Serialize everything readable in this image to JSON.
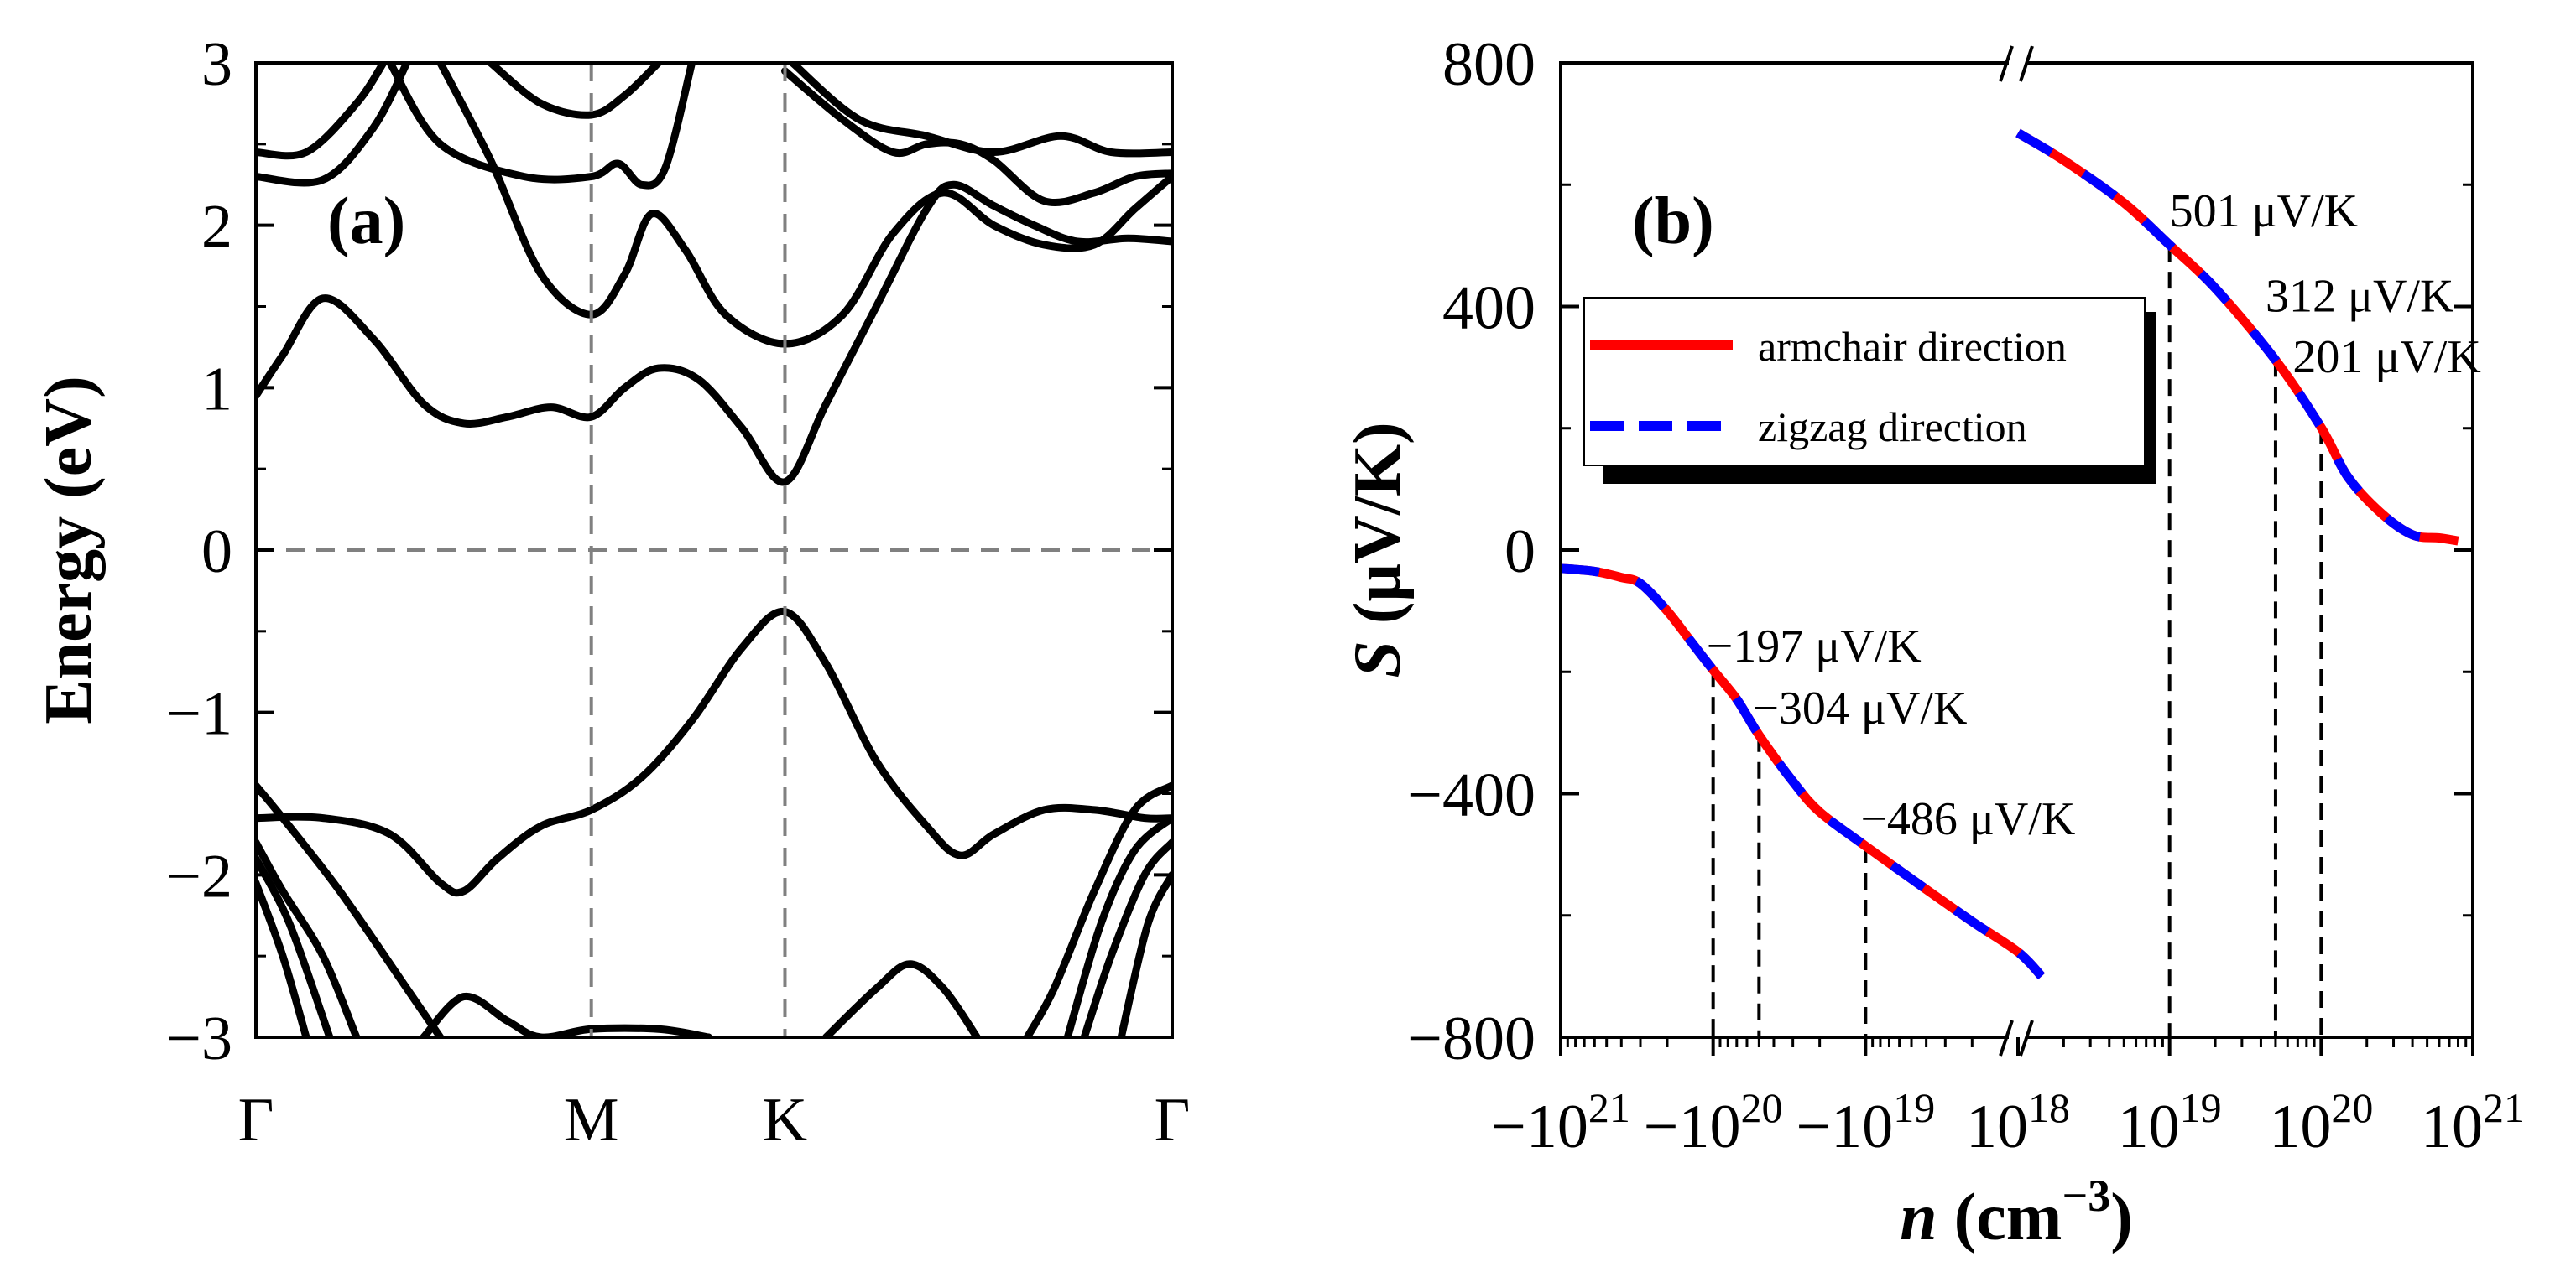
{
  "chart_data": [
    {
      "id": "a",
      "type": "line",
      "panel_label": "(a)",
      "ylabel": "Energy (eV)",
      "xlabel": "",
      "ylim": [
        -3,
        3
      ],
      "yticks": [
        "3",
        "2",
        "1",
        "0",
        "−1",
        "−2",
        "−3"
      ],
      "ytick_values": [
        3,
        2,
        1,
        0,
        -1,
        -2,
        -3
      ],
      "k_points": [
        "Γ",
        "M",
        "K",
        "Γ"
      ],
      "k_positions": [
        0,
        1,
        1.5774,
        2.7321
      ],
      "fermi_level": 0,
      "series": [
        {
          "name": "conduction band 1",
          "points": [
            [
              0,
              0.95
            ],
            [
              0.08,
              1.2
            ],
            [
              0.2,
              1.55
            ],
            [
              0.35,
              1.3
            ],
            [
              0.5,
              0.9
            ],
            [
              0.62,
              0.78
            ],
            [
              0.75,
              0.82
            ],
            [
              0.88,
              0.88
            ],
            [
              1,
              0.82
            ],
            [
              1.1,
              1.0
            ],
            [
              1.2,
              1.12
            ],
            [
              1.32,
              1.05
            ],
            [
              1.45,
              0.75
            ],
            [
              1.5774,
              0.42
            ],
            [
              1.7,
              0.9
            ],
            [
              1.85,
              1.5
            ],
            [
              2.0,
              2.1
            ],
            [
              2.08,
              2.25
            ],
            [
              2.2,
              2.12
            ],
            [
              2.32,
              2.0
            ],
            [
              2.45,
              1.9
            ],
            [
              2.6,
              1.92
            ],
            [
              2.7321,
              1.9
            ]
          ]
        },
        {
          "name": "conduction band 2",
          "points": [
            [
              0.55,
              3
            ],
            [
              0.7,
              2.4
            ],
            [
              0.85,
              1.7
            ],
            [
              1,
              1.45
            ],
            [
              1.1,
              1.7
            ],
            [
              1.18,
              2.07
            ],
            [
              1.28,
              1.85
            ],
            [
              1.4,
              1.45
            ],
            [
              1.5774,
              1.27
            ],
            [
              1.75,
              1.45
            ],
            [
              1.9,
              1.95
            ],
            [
              2.05,
              2.2
            ],
            [
              2.2,
              2.0
            ],
            [
              2.35,
              1.88
            ],
            [
              2.5,
              1.88
            ],
            [
              2.62,
              2.1
            ],
            [
              2.7321,
              2.3
            ]
          ]
        },
        {
          "name": "conduction band 3",
          "points": [
            [
              0,
              2.3
            ],
            [
              0.2,
              2.28
            ],
            [
              0.35,
              2.6
            ],
            [
              0.45,
              3
            ]
          ]
        },
        {
          "name": "conduction band 4",
          "points": [
            [
              0,
              2.45
            ],
            [
              0.15,
              2.45
            ],
            [
              0.3,
              2.75
            ],
            [
              0.38,
              3
            ]
          ]
        },
        {
          "name": "conduction band 5",
          "points": [
            [
              0.4,
              3
            ],
            [
              0.55,
              2.5
            ],
            [
              0.8,
              2.3
            ],
            [
              1,
              2.3
            ],
            [
              1.08,
              2.38
            ],
            [
              1.15,
              2.25
            ],
            [
              1.22,
              2.35
            ],
            [
              1.3,
              3
            ]
          ]
        },
        {
          "name": "conduction band 6",
          "points": [
            [
              0.7,
              3
            ],
            [
              0.85,
              2.75
            ],
            [
              1,
              2.68
            ],
            [
              1.1,
              2.8
            ],
            [
              1.2,
              3
            ]
          ]
        },
        {
          "name": "conduction band 7",
          "points": [
            [
              1.5774,
              2.95
            ],
            [
              1.75,
              2.65
            ],
            [
              1.9,
              2.45
            ],
            [
              2.0,
              2.5
            ],
            [
              2.1,
              2.5
            ],
            [
              2.2,
              2.4
            ],
            [
              2.35,
              2.15
            ],
            [
              2.5,
              2.2
            ],
            [
              2.62,
              2.3
            ],
            [
              2.7321,
              2.32
            ]
          ]
        },
        {
          "name": "conduction band 8",
          "points": [
            [
              1.6,
              3
            ],
            [
              1.8,
              2.65
            ],
            [
              2.0,
              2.55
            ],
            [
              2.2,
              2.45
            ],
            [
              2.4,
              2.55
            ],
            [
              2.55,
              2.45
            ],
            [
              2.7321,
              2.45
            ]
          ]
        },
        {
          "name": "valence band 1",
          "points": [
            [
              0,
              -1.65
            ],
            [
              0.2,
              -1.65
            ],
            [
              0.4,
              -1.75
            ],
            [
              0.55,
              -2.05
            ],
            [
              0.62,
              -2.1
            ],
            [
              0.72,
              -1.9
            ],
            [
              0.85,
              -1.7
            ],
            [
              1,
              -1.6
            ],
            [
              1.15,
              -1.4
            ],
            [
              1.3,
              -1.05
            ],
            [
              1.45,
              -0.6
            ],
            [
              1.5774,
              -0.38
            ],
            [
              1.7,
              -0.7
            ],
            [
              1.85,
              -1.3
            ],
            [
              2.0,
              -1.7
            ],
            [
              2.1,
              -1.88
            ],
            [
              2.2,
              -1.75
            ],
            [
              2.35,
              -1.6
            ],
            [
              2.5,
              -1.6
            ],
            [
              2.65,
              -1.65
            ],
            [
              2.7321,
              -1.65
            ]
          ]
        },
        {
          "name": "valence band 2",
          "points": [
            [
              0,
              -1.45
            ],
            [
              0.08,
              -1.65
            ],
            [
              0.25,
              -2.1
            ],
            [
              0.45,
              -2.7
            ],
            [
              0.55,
              -3
            ]
          ]
        },
        {
          "name": "valence band 3",
          "points": [
            [
              0,
              -1.8
            ],
            [
              0.08,
              -2.1
            ],
            [
              0.2,
              -2.5
            ],
            [
              0.3,
              -3
            ]
          ]
        },
        {
          "name": "valence band 4",
          "points": [
            [
              0,
              -1.9
            ],
            [
              0.1,
              -2.3
            ],
            [
              0.22,
              -3
            ]
          ]
        },
        {
          "name": "valence band 5",
          "points": [
            [
              0,
              -2.05
            ],
            [
              0.08,
              -2.5
            ],
            [
              0.15,
              -3
            ]
          ]
        },
        {
          "name": "valence band 6",
          "points": [
            [
              0.5,
              -3
            ],
            [
              0.62,
              -2.75
            ],
            [
              0.75,
              -2.9
            ],
            [
              0.85,
              -3
            ],
            [
              1,
              -2.95
            ],
            [
              1.2,
              -2.95
            ],
            [
              1.35,
              -3
            ]
          ]
        },
        {
          "name": "valence band 7",
          "points": [
            [
              1.7,
              -3
            ],
            [
              1.85,
              -2.7
            ],
            [
              1.95,
              -2.55
            ],
            [
              2.05,
              -2.7
            ],
            [
              2.15,
              -3
            ]
          ]
        },
        {
          "name": "valence band 8",
          "points": [
            [
              2.7321,
              -1.45
            ],
            [
              2.62,
              -1.6
            ],
            [
              2.5,
              -2.1
            ],
            [
              2.38,
              -2.7
            ],
            [
              2.3,
              -3
            ]
          ]
        },
        {
          "name": "valence band 9",
          "points": [
            [
              2.7321,
              -1.65
            ],
            [
              2.62,
              -1.85
            ],
            [
              2.52,
              -2.3
            ],
            [
              2.42,
              -3
            ]
          ]
        },
        {
          "name": "valence band 10",
          "points": [
            [
              2.7321,
              -1.8
            ],
            [
              2.65,
              -2.0
            ],
            [
              2.55,
              -2.5
            ],
            [
              2.47,
              -3
            ]
          ]
        },
        {
          "name": "valence band 11",
          "points": [
            [
              2.7321,
              -2.0
            ],
            [
              2.66,
              -2.3
            ],
            [
              2.58,
              -3
            ]
          ]
        }
      ]
    },
    {
      "id": "b",
      "type": "line",
      "panel_label": "(b)",
      "ylabel": "S (μV/K)",
      "xlabel": "n (cm⁻³)",
      "ylim": [
        -800,
        800
      ],
      "yticks": [
        "800",
        "400",
        "0",
        "−400",
        "−800"
      ],
      "ytick_values": [
        800,
        400,
        0,
        -400,
        -800
      ],
      "xticks": [
        "−10²¹",
        "−10²⁰",
        "−10¹⁹",
        "10¹⁸",
        "10¹⁹",
        "10²⁰",
        "10²¹"
      ],
      "xtick_values": [
        "-1e21",
        "-1e20",
        "-1e19",
        "1e18",
        "1e19",
        "1e20",
        "1e21"
      ],
      "legend": {
        "position": "upper-left",
        "entries": [
          "armchair direction",
          "zigzag direction"
        ]
      },
      "series": [
        {
          "name": "armchair direction",
          "color": "#ff0000",
          "style": "solid",
          "segments": [
            {
              "side": "n-type",
              "points": [
                [
                  "-1e21",
                  -30
                ],
                [
                  "-6e20",
                  -35
                ],
                [
                  "-4e20",
                  -45
                ],
                [
                  "-3e20",
                  -55
                ],
                [
                  "-2e20",
                  -100
                ],
                [
                  "-1.4e20",
                  -150
                ],
                [
                  "-1e20",
                  -197
                ],
                [
                  "-7e19",
                  -245
                ],
                [
                  "-5e19",
                  -304
                ],
                [
                  "-3e19",
                  -380
                ],
                [
                  "-2e19",
                  -430
                ],
                [
                  "-1e19",
                  -486
                ],
                [
                  "-5e18",
                  -540
                ],
                [
                  "-2e18",
                  -610
                ],
                [
                  "-1e18",
                  -660
                ],
                [
                  "-7e17",
                  -700
                ]
              ]
            },
            {
              "side": "p-type",
              "points": [
                [
                  "1e18",
                  685
                ],
                [
                  "2e18",
                  640
                ],
                [
                  "5e18",
                  570
                ],
                [
                  "1e19",
                  501
                ],
                [
                  "2e19",
                  430
                ],
                [
                  "5e19",
                  312
                ],
                [
                  "1e20",
                  201
                ],
                [
                  "1.5e20",
                  120
                ],
                [
                  "2.5e20",
                  60
                ],
                [
                  "4e20",
                  25
                ],
                [
                  "6e20",
                  20
                ],
                [
                  "8e20",
                  15
                ]
              ]
            }
          ]
        },
        {
          "name": "zigzag direction",
          "color": "#0000ff",
          "style": "dashed",
          "segments": [
            {
              "side": "n-type",
              "points": [
                [
                  "-1e21",
                  -30
                ],
                [
                  "-6e20",
                  -35
                ],
                [
                  "-4e20",
                  -45
                ],
                [
                  "-3e20",
                  -55
                ],
                [
                  "-2e20",
                  -100
                ],
                [
                  "-1.4e20",
                  -150
                ],
                [
                  "-1e20",
                  -197
                ],
                [
                  "-7e19",
                  -245
                ],
                [
                  "-5e19",
                  -304
                ],
                [
                  "-3e19",
                  -380
                ],
                [
                  "-2e19",
                  -430
                ],
                [
                  "-1e19",
                  -486
                ],
                [
                  "-5e18",
                  -540
                ],
                [
                  "-2e18",
                  -610
                ],
                [
                  "-1e18",
                  -660
                ],
                [
                  "-7e17",
                  -700
                ]
              ]
            },
            {
              "side": "p-type",
              "points": [
                [
                  "1e18",
                  685
                ],
                [
                  "2e18",
                  640
                ],
                [
                  "5e18",
                  570
                ],
                [
                  "1e19",
                  501
                ],
                [
                  "2e19",
                  430
                ],
                [
                  "5e19",
                  312
                ],
                [
                  "1e20",
                  201
                ],
                [
                  "1.5e20",
                  120
                ],
                [
                  "2.5e20",
                  60
                ],
                [
                  "4e20",
                  25
                ],
                [
                  "6e20",
                  20
                ],
                [
                  "8e20",
                  15
                ]
              ]
            }
          ]
        }
      ],
      "annotations": [
        {
          "text": "501 μV/K",
          "n": "1e19",
          "S": 501
        },
        {
          "text": "312 μV/K",
          "n": "5e19",
          "S": 312
        },
        {
          "text": "201 μV/K",
          "n": "1e20",
          "S": 201
        },
        {
          "text": "−197 μV/K",
          "n": "-1e20",
          "S": -197
        },
        {
          "text": "−304 μV/K",
          "n": "-5e19",
          "S": -304
        },
        {
          "text": "−486 μV/K",
          "n": "-1e19",
          "S": -486
        }
      ]
    }
  ]
}
